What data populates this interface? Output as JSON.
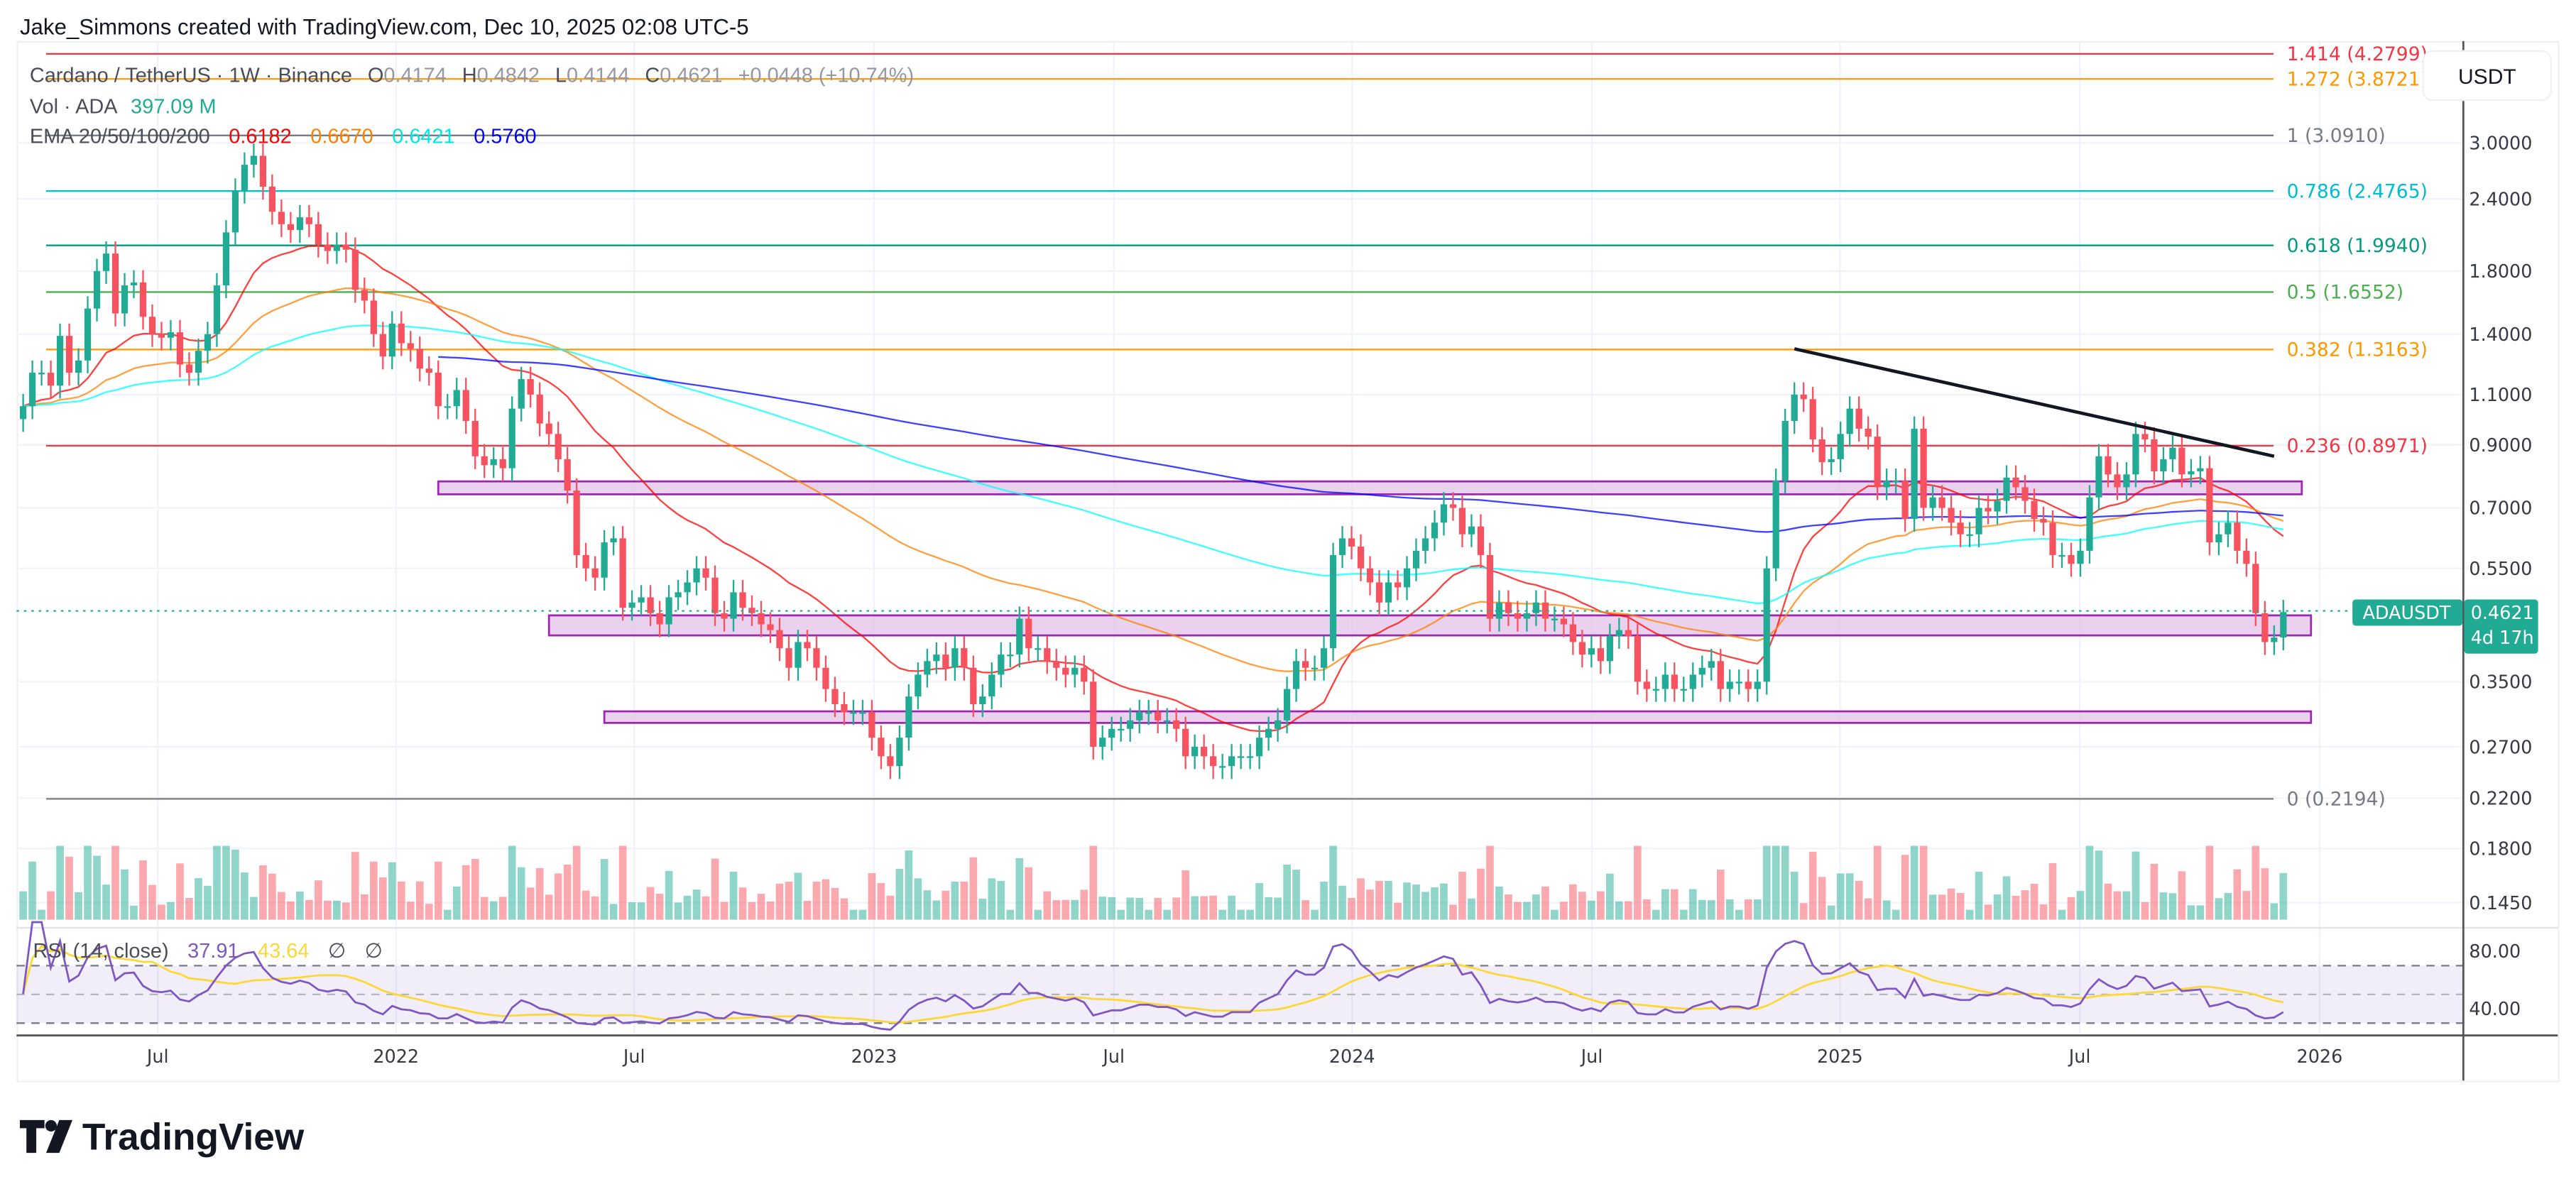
{
  "header": {
    "attribution": "Jake_Simmons created with TradingView.com, Dec 10, 2025 02:08 UTC-5"
  },
  "legend": {
    "symbol": "Cardano / TetherUS · 1W · Binance",
    "o_label": "O",
    "o": "0.4174",
    "h_label": "H",
    "h": "0.4842",
    "l_label": "L",
    "l": "0.4144",
    "c_label": "C",
    "c": "0.4621",
    "change": "+0.0448 (+10.74%)",
    "vol_label": "Vol · ADA",
    "vol": "397.09 M",
    "ema_label": "EMA 20/50/100/200",
    "ema_values": [
      "0.6182",
      "0.6670",
      "0.6421",
      "0.5760"
    ],
    "ema_colors": [
      "#ff0000",
      "#ff8000",
      "#00ffff",
      "#0000ff"
    ],
    "rsi_label": "RSI (14, close)",
    "rsi_value": "37.91",
    "rsi_ma_value": "43.64",
    "rsi_extra": [
      "∅",
      "∅"
    ]
  },
  "axis": {
    "currency": "USDT",
    "price_ticks": [
      "3.0000",
      "2.4000",
      "1.8000",
      "1.4000",
      "1.1000",
      "0.9000",
      "0.7000",
      "0.5500",
      "0.3500",
      "0.2700",
      "0.2200",
      "0.1800",
      "0.1450"
    ],
    "rsi_ticks": [
      "80.00",
      "40.00"
    ],
    "time_ticks": [
      "Jul",
      "2022",
      "Jul",
      "2023",
      "Jul",
      "2024",
      "Jul",
      "2025",
      "Jul",
      "2026"
    ]
  },
  "price_tag": {
    "symbol": "ADAUSDT",
    "price": "0.4621",
    "countdown": "4d 17h"
  },
  "fib_levels": [
    {
      "label": "1.414 (4.2799)",
      "price": 4.2799,
      "color": "#f23645"
    },
    {
      "label": "1.272 (3.8721)",
      "price": 3.8721,
      "color": "#ff9800"
    },
    {
      "label": "1 (3.0910)",
      "price": 3.091,
      "color": "#787b86"
    },
    {
      "label": "0.786 (2.4765)",
      "price": 2.4765,
      "color": "#00bcd4"
    },
    {
      "label": "0.618 (1.9940)",
      "price": 1.994,
      "color": "#089981"
    },
    {
      "label": "0.5 (1.6552)",
      "price": 1.6552,
      "color": "#4caf50"
    },
    {
      "label": "0.382 (1.3163)",
      "price": 1.3163,
      "color": "#ff9800"
    },
    {
      "label": "0.236 (0.8971)",
      "price": 0.8971,
      "color": "#f23645"
    },
    {
      "label": "0 (0.2194)",
      "price": 0.2194,
      "color": "#787b86"
    }
  ],
  "logo": {
    "text": "TradingView"
  },
  "colors": {
    "up": "#22ab94",
    "down": "#f7525f",
    "rsi": "#7e57c2",
    "rsi_ma": "#fdd835",
    "zone_fill": "#e1bee7",
    "zone_border": "#9c27b0",
    "trendline": "#131722"
  },
  "chart_data": {
    "type": "candlestick",
    "interval": "1W",
    "scale": "log",
    "start_week": "2021-03-15",
    "ylim": [
      0.135,
      4.4
    ],
    "grid": true,
    "close": [
      1.05,
      1.2,
      1.2,
      1.14,
      1.39,
      1.2,
      1.26,
      1.55,
      1.8,
      1.93,
      1.52,
      1.7,
      1.72,
      1.5,
      1.4,
      1.38,
      1.41,
      1.24,
      1.2,
      1.31,
      1.4,
      1.7,
      2.1,
      2.48,
      2.75,
      2.85,
      2.52,
      2.28,
      2.17,
      2.12,
      2.23,
      2.17,
      2.0,
      1.95,
      2.0,
      1.96,
      1.67,
      1.6,
      1.4,
      1.28,
      1.46,
      1.35,
      1.32,
      1.22,
      1.2,
      1.05,
      1.05,
      1.12,
      0.99,
      0.86,
      0.83,
      0.85,
      0.82,
      1.04,
      1.17,
      1.1,
      0.98,
      0.94,
      0.85,
      0.75,
      0.58,
      0.55,
      0.53,
      0.61,
      0.62,
      0.47,
      0.48,
      0.49,
      0.46,
      0.44,
      0.49,
      0.5,
      0.52,
      0.55,
      0.53,
      0.46,
      0.45,
      0.5,
      0.47,
      0.46,
      0.44,
      0.43,
      0.4,
      0.37,
      0.41,
      0.4,
      0.37,
      0.34,
      0.32,
      0.31,
      0.31,
      0.31,
      0.28,
      0.26,
      0.25,
      0.28,
      0.33,
      0.36,
      0.38,
      0.39,
      0.37,
      0.4,
      0.37,
      0.32,
      0.33,
      0.36,
      0.39,
      0.39,
      0.45,
      0.4,
      0.4,
      0.38,
      0.37,
      0.36,
      0.37,
      0.35,
      0.27,
      0.28,
      0.29,
      0.29,
      0.3,
      0.31,
      0.31,
      0.3,
      0.3,
      0.29,
      0.26,
      0.27,
      0.26,
      0.25,
      0.25,
      0.26,
      0.26,
      0.26,
      0.28,
      0.29,
      0.3,
      0.34,
      0.38,
      0.37,
      0.37,
      0.4,
      0.58,
      0.62,
      0.6,
      0.55,
      0.52,
      0.48,
      0.52,
      0.51,
      0.55,
      0.59,
      0.62,
      0.66,
      0.71,
      0.7,
      0.63,
      0.65,
      0.58,
      0.45,
      0.48,
      0.46,
      0.45,
      0.46,
      0.48,
      0.45,
      0.45,
      0.44,
      0.41,
      0.39,
      0.4,
      0.38,
      0.42,
      0.43,
      0.42,
      0.35,
      0.34,
      0.34,
      0.36,
      0.34,
      0.34,
      0.36,
      0.37,
      0.38,
      0.34,
      0.35,
      0.35,
      0.34,
      0.35,
      0.55,
      0.78,
      0.99,
      1.1,
      1.08,
      0.92,
      0.84,
      0.85,
      0.94,
      1.04,
      0.96,
      0.93,
      0.76,
      0.78,
      0.78,
      0.67,
      0.96,
      0.7,
      0.73,
      0.7,
      0.66,
      0.63,
      0.63,
      0.7,
      0.69,
      0.72,
      0.79,
      0.76,
      0.72,
      0.67,
      0.66,
      0.58,
      0.58,
      0.56,
      0.59,
      0.73,
      0.86,
      0.8,
      0.76,
      0.8,
      0.94,
      0.92,
      0.81,
      0.85,
      0.89,
      0.8,
      0.81,
      0.82,
      0.61,
      0.63,
      0.66,
      0.59,
      0.56,
      0.46,
      0.41,
      0.4174,
      0.4621
    ],
    "zones": [
      {
        "from": "2022-01-24",
        "to": "2025-12-08",
        "low": 0.739,
        "high": 0.778
      },
      {
        "from": "2022-04-18",
        "to": "2025-12-15",
        "low": 0.421,
        "high": 0.456
      },
      {
        "from": "2022-05-30",
        "to": "2025-12-15",
        "low": 0.297,
        "high": 0.311
      }
    ],
    "trendline": {
      "from": [
        "2024-11-18",
        1.32
      ],
      "to": [
        "2025-11-17",
        0.86
      ]
    },
    "rsi_bands": [
      70,
      50,
      30
    ]
  }
}
